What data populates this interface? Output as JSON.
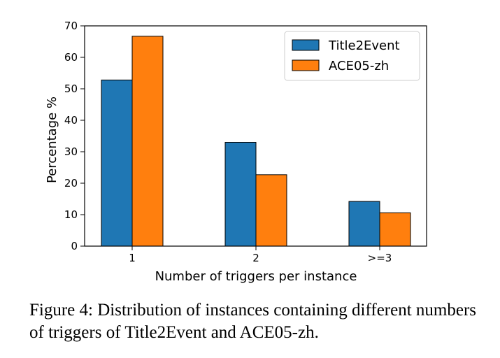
{
  "chart_data": {
    "type": "bar",
    "categories": [
      "1",
      "2",
      ">=3"
    ],
    "series": [
      {
        "name": "Title2Event",
        "values": [
          52.8,
          33.0,
          14.2
        ],
        "color": "#1f77b4"
      },
      {
        "name": "ACE05-zh",
        "values": [
          66.7,
          22.7,
          10.6
        ],
        "color": "#ff7f0e"
      }
    ],
    "xlabel": "Number of triggers per instance",
    "ylabel": "Percentage %",
    "ylim": [
      0,
      70
    ],
    "yticks": [
      0,
      10,
      20,
      30,
      40,
      50,
      60,
      70
    ],
    "legend_position": "top-right",
    "grid": false
  },
  "caption": "Figure 4: Distribution of instances containing different numbers of triggers of Title2Event and ACE05-zh."
}
